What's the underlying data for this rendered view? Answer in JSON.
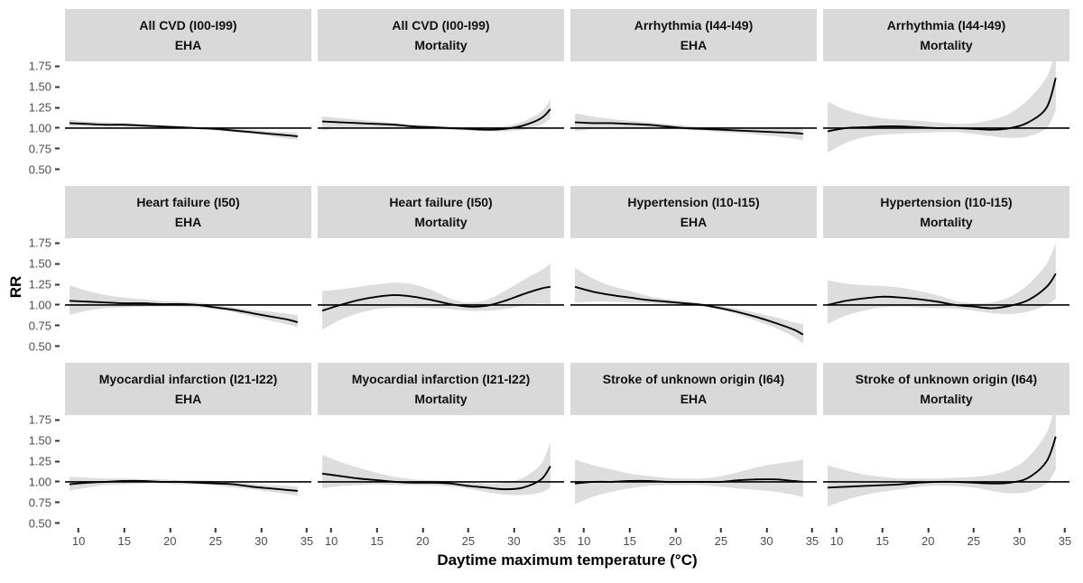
{
  "figure": {
    "x_axis_title": "Daytime maximum temperature (°C)",
    "y_axis_title": "RR",
    "colors": {
      "strip_bg": "#d9d9d9",
      "band": "#dddddd",
      "curve": "#000000",
      "reference_line": "#000000",
      "tick_text": "#4d4d4d",
      "tick_mark": "#333333"
    }
  },
  "chart_data": {
    "type": "line",
    "layout": {
      "rows": 3,
      "cols": 4
    },
    "xlabel": "Daytime maximum temperature (°C)",
    "ylabel": "RR",
    "x_tick_labels": [
      "10",
      "15",
      "20",
      "25",
      "30",
      "35"
    ],
    "x_tick_values": [
      10,
      15,
      20,
      25,
      30,
      35
    ],
    "y_tick_labels": [
      "1.75",
      "1.50",
      "1.25",
      "1.00",
      "0.75",
      "0.50"
    ],
    "y_tick_values": [
      1.75,
      1.5,
      1.25,
      1.0,
      0.75,
      0.5
    ],
    "xlim": [
      8.5,
      35.5
    ],
    "ylim": [
      0.44,
      1.81
    ],
    "reference_line": 1.0,
    "x": [
      9,
      11,
      13,
      15,
      17,
      19,
      21,
      23,
      25,
      27,
      29,
      31,
      33,
      34
    ],
    "facets": [
      {
        "strip_line1": "All CVD (I00-I99)",
        "strip_line2": "EHA",
        "rr": [
          1.06,
          1.05,
          1.04,
          1.04,
          1.03,
          1.02,
          1.01,
          1.0,
          0.99,
          0.97,
          0.95,
          0.93,
          0.91,
          0.9
        ],
        "ci_low": [
          1.02,
          1.02,
          1.02,
          1.02,
          1.01,
          1.0,
          1.0,
          0.99,
          0.97,
          0.95,
          0.93,
          0.9,
          0.87,
          0.86
        ],
        "ci_high": [
          1.1,
          1.08,
          1.07,
          1.06,
          1.05,
          1.03,
          1.02,
          1.01,
          1.0,
          0.99,
          0.98,
          0.96,
          0.95,
          0.94
        ]
      },
      {
        "strip_line1": "All CVD (I00-I99)",
        "strip_line2": "Mortality",
        "rr": [
          1.08,
          1.07,
          1.06,
          1.05,
          1.04,
          1.02,
          1.01,
          1.0,
          0.99,
          0.98,
          0.99,
          1.03,
          1.12,
          1.23
        ],
        "ci_low": [
          0.97,
          1.0,
          1.01,
          1.01,
          1.0,
          0.99,
          0.99,
          0.98,
          0.97,
          0.96,
          0.96,
          0.98,
          1.04,
          1.12
        ],
        "ci_high": [
          1.14,
          1.12,
          1.1,
          1.08,
          1.06,
          1.04,
          1.03,
          1.01,
          1.0,
          1.0,
          1.02,
          1.08,
          1.2,
          1.35
        ]
      },
      {
        "strip_line1": "Arrhythmia (I44-I49)",
        "strip_line2": "EHA",
        "rr": [
          1.07,
          1.06,
          1.06,
          1.05,
          1.04,
          1.02,
          1.0,
          0.99,
          0.98,
          0.97,
          0.96,
          0.95,
          0.94,
          0.93
        ],
        "ci_low": [
          0.96,
          0.99,
          1.0,
          1.0,
          0.99,
          0.99,
          0.98,
          0.97,
          0.95,
          0.94,
          0.92,
          0.9,
          0.87,
          0.85
        ],
        "ci_high": [
          1.18,
          1.14,
          1.11,
          1.09,
          1.07,
          1.05,
          1.03,
          1.01,
          1.01,
          1.0,
          1.0,
          1.01,
          1.01,
          1.02
        ]
      },
      {
        "strip_line1": "Arrhythmia (I44-I49)",
        "strip_line2": "Mortality",
        "rr": [
          0.96,
          1.0,
          1.01,
          1.02,
          1.02,
          1.01,
          1.0,
          1.0,
          0.99,
          0.98,
          1.0,
          1.07,
          1.25,
          1.61
        ],
        "ci_low": [
          0.7,
          0.82,
          0.89,
          0.92,
          0.93,
          0.94,
          0.95,
          0.95,
          0.93,
          0.9,
          0.88,
          0.9,
          1.0,
          1.22
        ],
        "ci_high": [
          1.32,
          1.22,
          1.16,
          1.12,
          1.1,
          1.09,
          1.07,
          1.05,
          1.06,
          1.1,
          1.18,
          1.35,
          1.62,
          1.95
        ]
      },
      {
        "strip_line1": "Heart failure (I50)",
        "strip_line2": "EHA",
        "rr": [
          1.05,
          1.04,
          1.03,
          1.02,
          1.02,
          1.01,
          1.01,
          1.0,
          0.97,
          0.94,
          0.9,
          0.86,
          0.82,
          0.79
        ],
        "ci_low": [
          0.88,
          0.93,
          0.96,
          0.97,
          0.98,
          0.98,
          0.98,
          0.97,
          0.95,
          0.91,
          0.86,
          0.81,
          0.76,
          0.73
        ],
        "ci_high": [
          1.24,
          1.17,
          1.12,
          1.09,
          1.07,
          1.05,
          1.04,
          1.03,
          1.0,
          0.97,
          0.94,
          0.92,
          0.89,
          0.88
        ]
      },
      {
        "strip_line1": "Heart failure (I50)",
        "strip_line2": "Mortality",
        "rr": [
          0.93,
          1.0,
          1.06,
          1.1,
          1.12,
          1.1,
          1.06,
          1.01,
          0.98,
          0.99,
          1.05,
          1.13,
          1.2,
          1.22
        ],
        "ci_low": [
          0.7,
          0.82,
          0.9,
          0.95,
          0.97,
          0.97,
          0.96,
          0.95,
          0.93,
          0.93,
          0.95,
          0.99,
          1.02,
          1.0
        ],
        "ci_high": [
          1.17,
          1.19,
          1.22,
          1.25,
          1.27,
          1.25,
          1.18,
          1.08,
          1.03,
          1.06,
          1.17,
          1.3,
          1.42,
          1.5
        ]
      },
      {
        "strip_line1": "Hypertension (I10-I15)",
        "strip_line2": "EHA",
        "rr": [
          1.22,
          1.16,
          1.12,
          1.09,
          1.06,
          1.04,
          1.02,
          1.0,
          0.96,
          0.91,
          0.85,
          0.78,
          0.7,
          0.64
        ],
        "ci_low": [
          1.03,
          1.04,
          1.04,
          1.03,
          1.02,
          1.01,
          1.0,
          0.98,
          0.94,
          0.88,
          0.8,
          0.72,
          0.61,
          0.53
        ],
        "ci_high": [
          1.45,
          1.32,
          1.23,
          1.17,
          1.11,
          1.07,
          1.05,
          1.02,
          0.99,
          0.95,
          0.9,
          0.85,
          0.79,
          0.77
        ]
      },
      {
        "strip_line1": "Hypertension (I10-I15)",
        "strip_line2": "Mortality",
        "rr": [
          1.0,
          1.05,
          1.08,
          1.1,
          1.09,
          1.07,
          1.04,
          1.0,
          0.98,
          0.96,
          0.99,
          1.06,
          1.22,
          1.38
        ],
        "ci_low": [
          0.77,
          0.87,
          0.93,
          0.97,
          0.98,
          0.97,
          0.96,
          0.955,
          0.93,
          0.9,
          0.89,
          0.92,
          1.0,
          1.08
        ],
        "ci_high": [
          1.3,
          1.26,
          1.24,
          1.23,
          1.21,
          1.17,
          1.12,
          1.05,
          1.02,
          1.03,
          1.1,
          1.25,
          1.5,
          1.75
        ]
      },
      {
        "strip_line1": "Myocardial infarction (I21-I22)",
        "strip_line2": "EHA",
        "rr": [
          0.97,
          0.99,
          1.0,
          1.01,
          1.01,
          1.0,
          1.0,
          0.99,
          0.98,
          0.97,
          0.94,
          0.92,
          0.9,
          0.89
        ],
        "ci_low": [
          0.89,
          0.93,
          0.96,
          0.97,
          0.98,
          0.98,
          0.97,
          0.97,
          0.955,
          0.93,
          0.91,
          0.88,
          0.85,
          0.83
        ],
        "ci_high": [
          1.06,
          1.05,
          1.04,
          1.04,
          1.03,
          1.03,
          1.02,
          1.02,
          1.01,
          1.0,
          0.98,
          0.96,
          0.95,
          0.94
        ]
      },
      {
        "strip_line1": "Myocardial infarction (I21-I22)",
        "strip_line2": "Mortality",
        "rr": [
          1.1,
          1.07,
          1.04,
          1.02,
          1.0,
          0.99,
          0.99,
          0.98,
          0.95,
          0.93,
          0.91,
          0.93,
          1.03,
          1.19
        ],
        "ci_low": [
          0.92,
          0.95,
          0.96,
          0.97,
          0.96,
          0.96,
          0.955,
          0.945,
          0.915,
          0.875,
          0.845,
          0.84,
          0.87,
          0.93
        ],
        "ci_high": [
          1.33,
          1.24,
          1.17,
          1.11,
          1.06,
          1.03,
          1.02,
          1.01,
          1.0,
          0.98,
          0.99,
          1.05,
          1.22,
          1.48
        ]
      },
      {
        "strip_line1": "Stroke of unknown origin (I64)",
        "strip_line2": "EHA",
        "rr": [
          0.98,
          1.0,
          1.0,
          1.01,
          1.01,
          1.0,
          1.0,
          1.0,
          1.0,
          1.02,
          1.03,
          1.03,
          1.01,
          1.0
        ],
        "ci_low": [
          0.73,
          0.82,
          0.88,
          0.92,
          0.95,
          0.96,
          0.96,
          0.96,
          0.94,
          0.92,
          0.9,
          0.88,
          0.84,
          0.81
        ],
        "ci_high": [
          1.27,
          1.2,
          1.15,
          1.1,
          1.07,
          1.05,
          1.04,
          1.04,
          1.07,
          1.12,
          1.18,
          1.22,
          1.25,
          1.27
        ]
      },
      {
        "strip_line1": "Stroke of unknown origin (I64)",
        "strip_line2": "Mortality",
        "rr": [
          0.93,
          0.94,
          0.95,
          0.96,
          0.97,
          0.99,
          1.0,
          1.0,
          0.99,
          0.98,
          0.99,
          1.05,
          1.25,
          1.55
        ],
        "ci_low": [
          0.7,
          0.78,
          0.84,
          0.88,
          0.91,
          0.94,
          0.955,
          0.95,
          0.93,
          0.89,
          0.86,
          0.88,
          0.98,
          1.15
        ],
        "ci_high": [
          1.2,
          1.14,
          1.09,
          1.06,
          1.04,
          1.04,
          1.04,
          1.05,
          1.06,
          1.09,
          1.15,
          1.3,
          1.6,
          1.95
        ]
      }
    ]
  }
}
